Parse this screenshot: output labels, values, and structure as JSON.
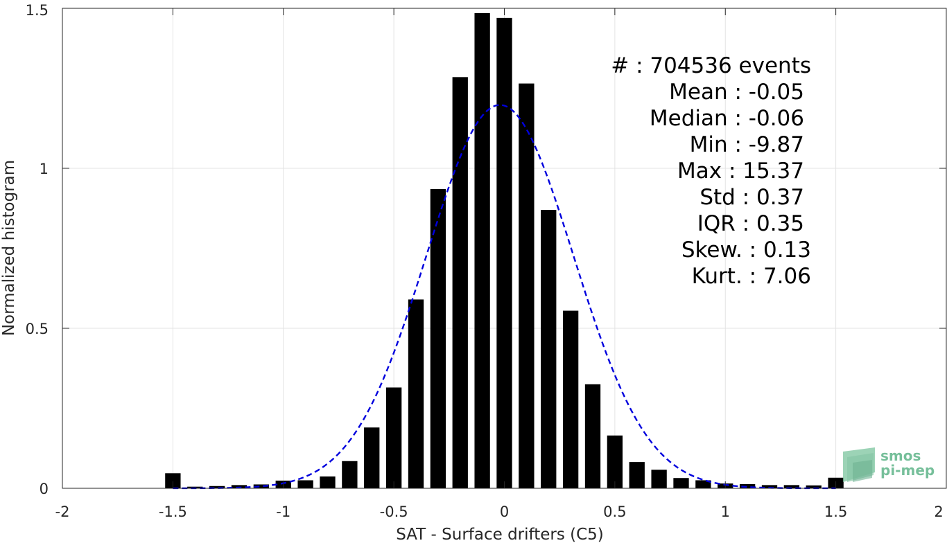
{
  "chart_data": {
    "type": "bar",
    "xlabel": "SAT - Surface drifters (C5)",
    "ylabel": "Normalized histogram",
    "xlim": [
      -2,
      2
    ],
    "ylim": [
      0,
      1.5
    ],
    "xticks": [
      -2,
      -1.5,
      -1,
      -0.5,
      0,
      0.5,
      1,
      1.5,
      2
    ],
    "xtick_labels": [
      "-2",
      "-1.5",
      "-1",
      "-0.5",
      "0",
      "0.5",
      "1",
      "1.5",
      "2"
    ],
    "yticks": [
      0,
      0.5,
      1,
      1.5
    ],
    "ytick_labels": [
      "0",
      "0.5",
      "1",
      "1.5"
    ],
    "grid": true,
    "bar_width": 0.07,
    "bar_color": "#000000",
    "x": [
      -1.5,
      -1.4,
      -1.3,
      -1.2,
      -1.1,
      -1.0,
      -0.9,
      -0.8,
      -0.7,
      -0.6,
      -0.5,
      -0.4,
      -0.3,
      -0.2,
      -0.1,
      0.0,
      0.1,
      0.2,
      0.3,
      0.4,
      0.5,
      0.6,
      0.7,
      0.8,
      0.9,
      1.0,
      1.1,
      1.2,
      1.3,
      1.4,
      1.5
    ],
    "values": [
      0.047,
      0.005,
      0.007,
      0.01,
      0.012,
      0.024,
      0.025,
      0.037,
      0.085,
      0.19,
      0.315,
      0.59,
      0.935,
      1.285,
      1.485,
      1.47,
      1.265,
      0.87,
      0.555,
      0.325,
      0.165,
      0.082,
      0.058,
      0.032,
      0.025,
      0.015,
      0.013,
      0.01,
      0.01,
      0.009,
      0.033
    ],
    "fit_curve": {
      "style": "dashed",
      "color": "#0000dd",
      "mean": -0.02,
      "std": 0.333,
      "x_range": [
        -1.5,
        1.5
      ]
    },
    "stats": [
      {
        "label": "#  : 704536 events",
        "anchor": "end"
      },
      {
        "label": "Mean : -0.05",
        "anchor": "end"
      },
      {
        "label": "Median : -0.06",
        "anchor": "end"
      },
      {
        "label": "Min : -9.87",
        "anchor": "end"
      },
      {
        "label": "Max : 15.37",
        "anchor": "end"
      },
      {
        "label": "Std : 0.37",
        "anchor": "end"
      },
      {
        "label": "IQR : 0.35",
        "anchor": "end"
      },
      {
        "label": "Skew. : 0.13",
        "anchor": "end"
      },
      {
        "label": "Kurt. : 7.06",
        "anchor": "end"
      }
    ]
  },
  "logo": {
    "line1": "smos",
    "line2": "pi-mep",
    "color": "#5fb489"
  }
}
